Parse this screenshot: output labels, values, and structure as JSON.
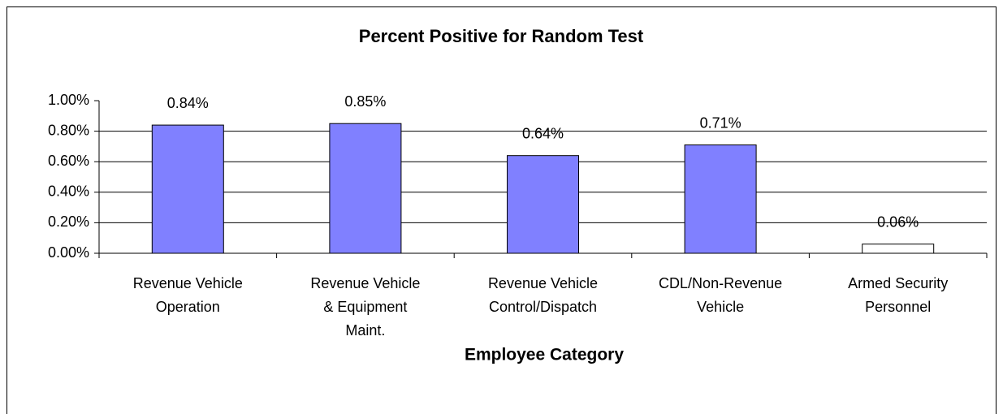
{
  "chart_data": {
    "type": "bar",
    "title": "Percent Positive for Random Test",
    "x_label": "Employee Category",
    "categories": [
      "Revenue Vehicle\nOperation",
      "Revenue Vehicle\n& Equipment\nMaint.",
      "Revenue Vehicle\nControl/Dispatch",
      "CDL/Non-Revenue\nVehicle",
      "Armed Security\nPersonnel"
    ],
    "values": [
      0.84,
      0.85,
      0.64,
      0.71,
      0.06
    ],
    "value_labels": [
      "0.84%",
      "0.85%",
      "0.64%",
      "0.71%",
      "0.06%"
    ],
    "colors": [
      "#8080ff",
      "#8080ff",
      "#8080ff",
      "#8080ff",
      "#ffffff"
    ],
    "ylim": [
      0,
      1
    ],
    "yticks": [
      {
        "value": 0,
        "label": "0.00%"
      },
      {
        "value": 0.2,
        "label": "0.20%"
      },
      {
        "value": 0.4,
        "label": "0.40%"
      },
      {
        "value": 0.6,
        "label": "0.60%"
      },
      {
        "value": 0.8,
        "label": "0.80%"
      },
      {
        "value": 1,
        "label": "1.00%"
      }
    ],
    "grid": true
  }
}
